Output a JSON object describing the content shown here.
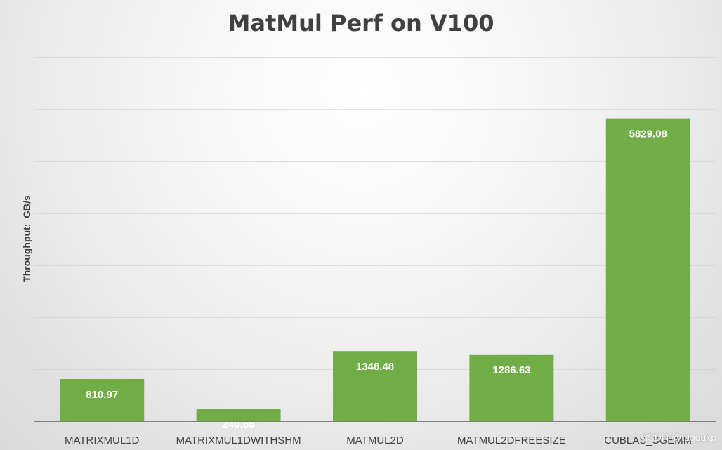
{
  "chart_data": {
    "type": "bar",
    "title": "MatMul Perf on V100",
    "xlabel": "",
    "ylabel": "Throughput:  GB/s",
    "categories": [
      "MATRIXMUL1D",
      "MATRIXMUL1DWITHSHM",
      "MATMUL2D",
      "MATMUL2DFREESIZE",
      "CUBLAS_SGEMM"
    ],
    "values": [
      810.97,
      240.65,
      1348.48,
      1286.63,
      5829.08
    ],
    "data_labels": [
      "810.97",
      "240.65",
      "1348.48",
      "1286.63",
      "5829.08"
    ],
    "ylim": [
      0,
      7000
    ],
    "gridlines": true,
    "bar_color": "#70ad47",
    "label_color": "#ffffff"
  },
  "watermark": "CSDN @tugouxp"
}
